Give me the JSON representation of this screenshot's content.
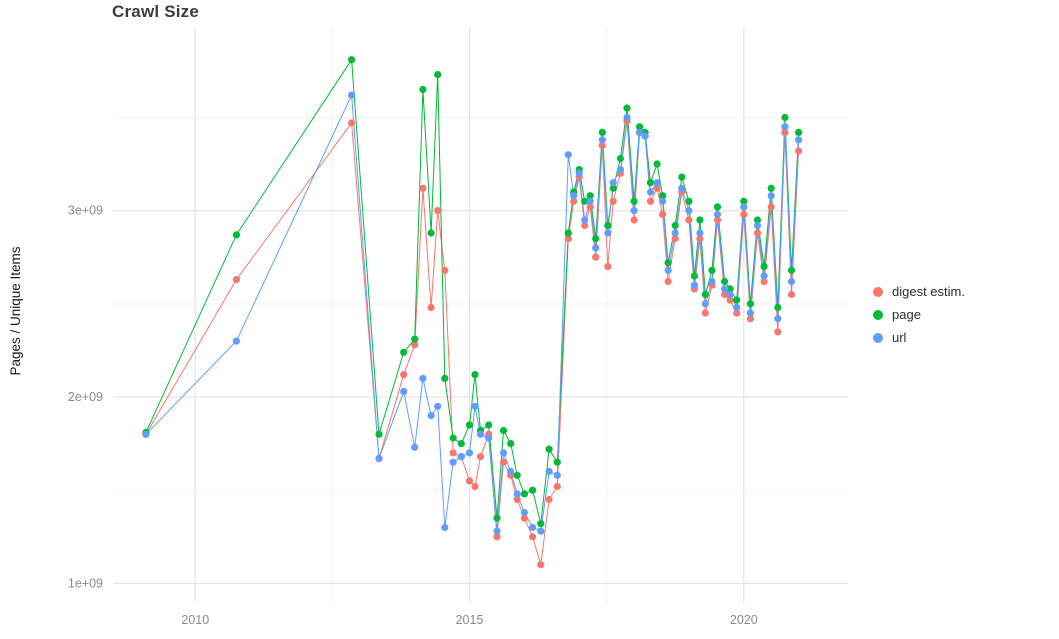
{
  "chart_data": {
    "type": "line",
    "title": "Crawl Size",
    "xlabel": "",
    "ylabel": "Pages / Unique Items",
    "grid": true,
    "legend_position": "right",
    "xlim": [
      2008.5,
      2021.9
    ],
    "ylim": [
      900000000.0,
      3980000000.0
    ],
    "x_ticks": [
      {
        "value": 2010,
        "label": "2010"
      },
      {
        "value": 2015,
        "label": "2015"
      },
      {
        "value": 2020,
        "label": "2020"
      }
    ],
    "y_ticks": [
      {
        "value": 1000000000.0,
        "label": "1e+09"
      },
      {
        "value": 2000000000.0,
        "label": "2e+09"
      },
      {
        "value": 3000000000.0,
        "label": "3e+09"
      }
    ],
    "x_minor": [
      2012.5,
      2017.5
    ],
    "y_minor": [
      1500000000.0,
      2500000000.0,
      3500000000.0
    ],
    "x": [
      2009.1,
      2010.75,
      2012.85,
      2013.35,
      2013.8,
      2014.0,
      2014.15,
      2014.3,
      2014.42,
      2014.55,
      2014.7,
      2014.85,
      2015.0,
      2015.1,
      2015.2,
      2015.35,
      2015.5,
      2015.62,
      2015.75,
      2015.87,
      2016.0,
      2016.15,
      2016.3,
      2016.45,
      2016.6,
      2016.8,
      2016.9,
      2017.0,
      2017.1,
      2017.2,
      2017.3,
      2017.42,
      2017.52,
      2017.62,
      2017.75,
      2017.87,
      2018.0,
      2018.1,
      2018.2,
      2018.3,
      2018.42,
      2018.52,
      2018.62,
      2018.75,
      2018.87,
      2019.0,
      2019.1,
      2019.2,
      2019.3,
      2019.42,
      2019.52,
      2019.65,
      2019.75,
      2019.87,
      2020.0,
      2020.12,
      2020.25,
      2020.37,
      2020.5,
      2020.62,
      2020.75,
      2020.87,
      2021.0
    ],
    "series": [
      {
        "name": "digest estim.",
        "color": "#F8766D",
        "values": [
          1800000000.0,
          2630000000.0,
          3470000000.0,
          1670000000.0,
          2120000000.0,
          2280000000.0,
          3120000000.0,
          2480000000.0,
          3000000000.0,
          2680000000.0,
          1700000000.0,
          1680000000.0,
          1550000000.0,
          1520000000.0,
          1680000000.0,
          1800000000.0,
          1250000000.0,
          1650000000.0,
          1580000000.0,
          1450000000.0,
          1350000000.0,
          1250000000.0,
          1100000000.0,
          1450000000.0,
          1520000000.0,
          2850000000.0,
          3050000000.0,
          3180000000.0,
          2920000000.0,
          3020000000.0,
          2750000000.0,
          3350000000.0,
          2700000000.0,
          3050000000.0,
          3200000000.0,
          3480000000.0,
          2950000000.0,
          3420000000.0,
          3400000000.0,
          3050000000.0,
          3120000000.0,
          2980000000.0,
          2620000000.0,
          2850000000.0,
          3100000000.0,
          2950000000.0,
          2580000000.0,
          2850000000.0,
          2450000000.0,
          2600000000.0,
          2950000000.0,
          2550000000.0,
          2520000000.0,
          2450000000.0,
          2980000000.0,
          2420000000.0,
          2880000000.0,
          2620000000.0,
          3020000000.0,
          2350000000.0,
          3420000000.0,
          2550000000.0,
          3320000000.0
        ]
      },
      {
        "name": "page",
        "color": "#00BA38",
        "values": [
          1810000000.0,
          2870000000.0,
          3810000000.0,
          1800000000.0,
          2240000000.0,
          2310000000.0,
          3650000000.0,
          2880000000.0,
          3730000000.0,
          2100000000.0,
          1780000000.0,
          1750000000.0,
          1850000000.0,
          2120000000.0,
          1820000000.0,
          1850000000.0,
          1350000000.0,
          1820000000.0,
          1750000000.0,
          1580000000.0,
          1480000000.0,
          1500000000.0,
          1320000000.0,
          1720000000.0,
          1650000000.0,
          2880000000.0,
          3100000000.0,
          3220000000.0,
          3050000000.0,
          3080000000.0,
          2850000000.0,
          3420000000.0,
          2920000000.0,
          3120000000.0,
          3280000000.0,
          3550000000.0,
          3050000000.0,
          3450000000.0,
          3420000000.0,
          3150000000.0,
          3250000000.0,
          3080000000.0,
          2720000000.0,
          2920000000.0,
          3180000000.0,
          3050000000.0,
          2650000000.0,
          2950000000.0,
          2550000000.0,
          2680000000.0,
          3020000000.0,
          2620000000.0,
          2580000000.0,
          2520000000.0,
          3050000000.0,
          2500000000.0,
          2950000000.0,
          2700000000.0,
          3120000000.0,
          2480000000.0,
          3500000000.0,
          2680000000.0,
          3420000000.0
        ]
      },
      {
        "name": "url",
        "color": "#619CFF",
        "values": [
          1800000000.0,
          2300000000.0,
          3620000000.0,
          1670000000.0,
          2030000000.0,
          1730000000.0,
          2100000000.0,
          1900000000.0,
          1950000000.0,
          1300000000.0,
          1650000000.0,
          1680000000.0,
          1700000000.0,
          1950000000.0,
          1800000000.0,
          1780000000.0,
          1280000000.0,
          1700000000.0,
          1600000000.0,
          1480000000.0,
          1380000000.0,
          1300000000.0,
          1280000000.0,
          1600000000.0,
          1580000000.0,
          3300000000.0,
          3080000000.0,
          3200000000.0,
          2950000000.0,
          3050000000.0,
          2800000000.0,
          3380000000.0,
          2880000000.0,
          3150000000.0,
          3220000000.0,
          3500000000.0,
          3000000000.0,
          3420000000.0,
          3400000000.0,
          3100000000.0,
          3150000000.0,
          3050000000.0,
          2680000000.0,
          2880000000.0,
          3120000000.0,
          3000000000.0,
          2600000000.0,
          2880000000.0,
          2500000000.0,
          2620000000.0,
          2980000000.0,
          2580000000.0,
          2550000000.0,
          2480000000.0,
          3020000000.0,
          2450000000.0,
          2920000000.0,
          2650000000.0,
          3080000000.0,
          2420000000.0,
          3450000000.0,
          2620000000.0,
          3380000000.0
        ]
      }
    ],
    "style": {
      "grid_major_color": "#e5e5e5",
      "grid_minor_color": "#f2f2f2",
      "tick_label_color": "#8a8a8a",
      "title_color": "#3c3c3c",
      "point_radius": 3.6,
      "line_width": 1
    }
  }
}
